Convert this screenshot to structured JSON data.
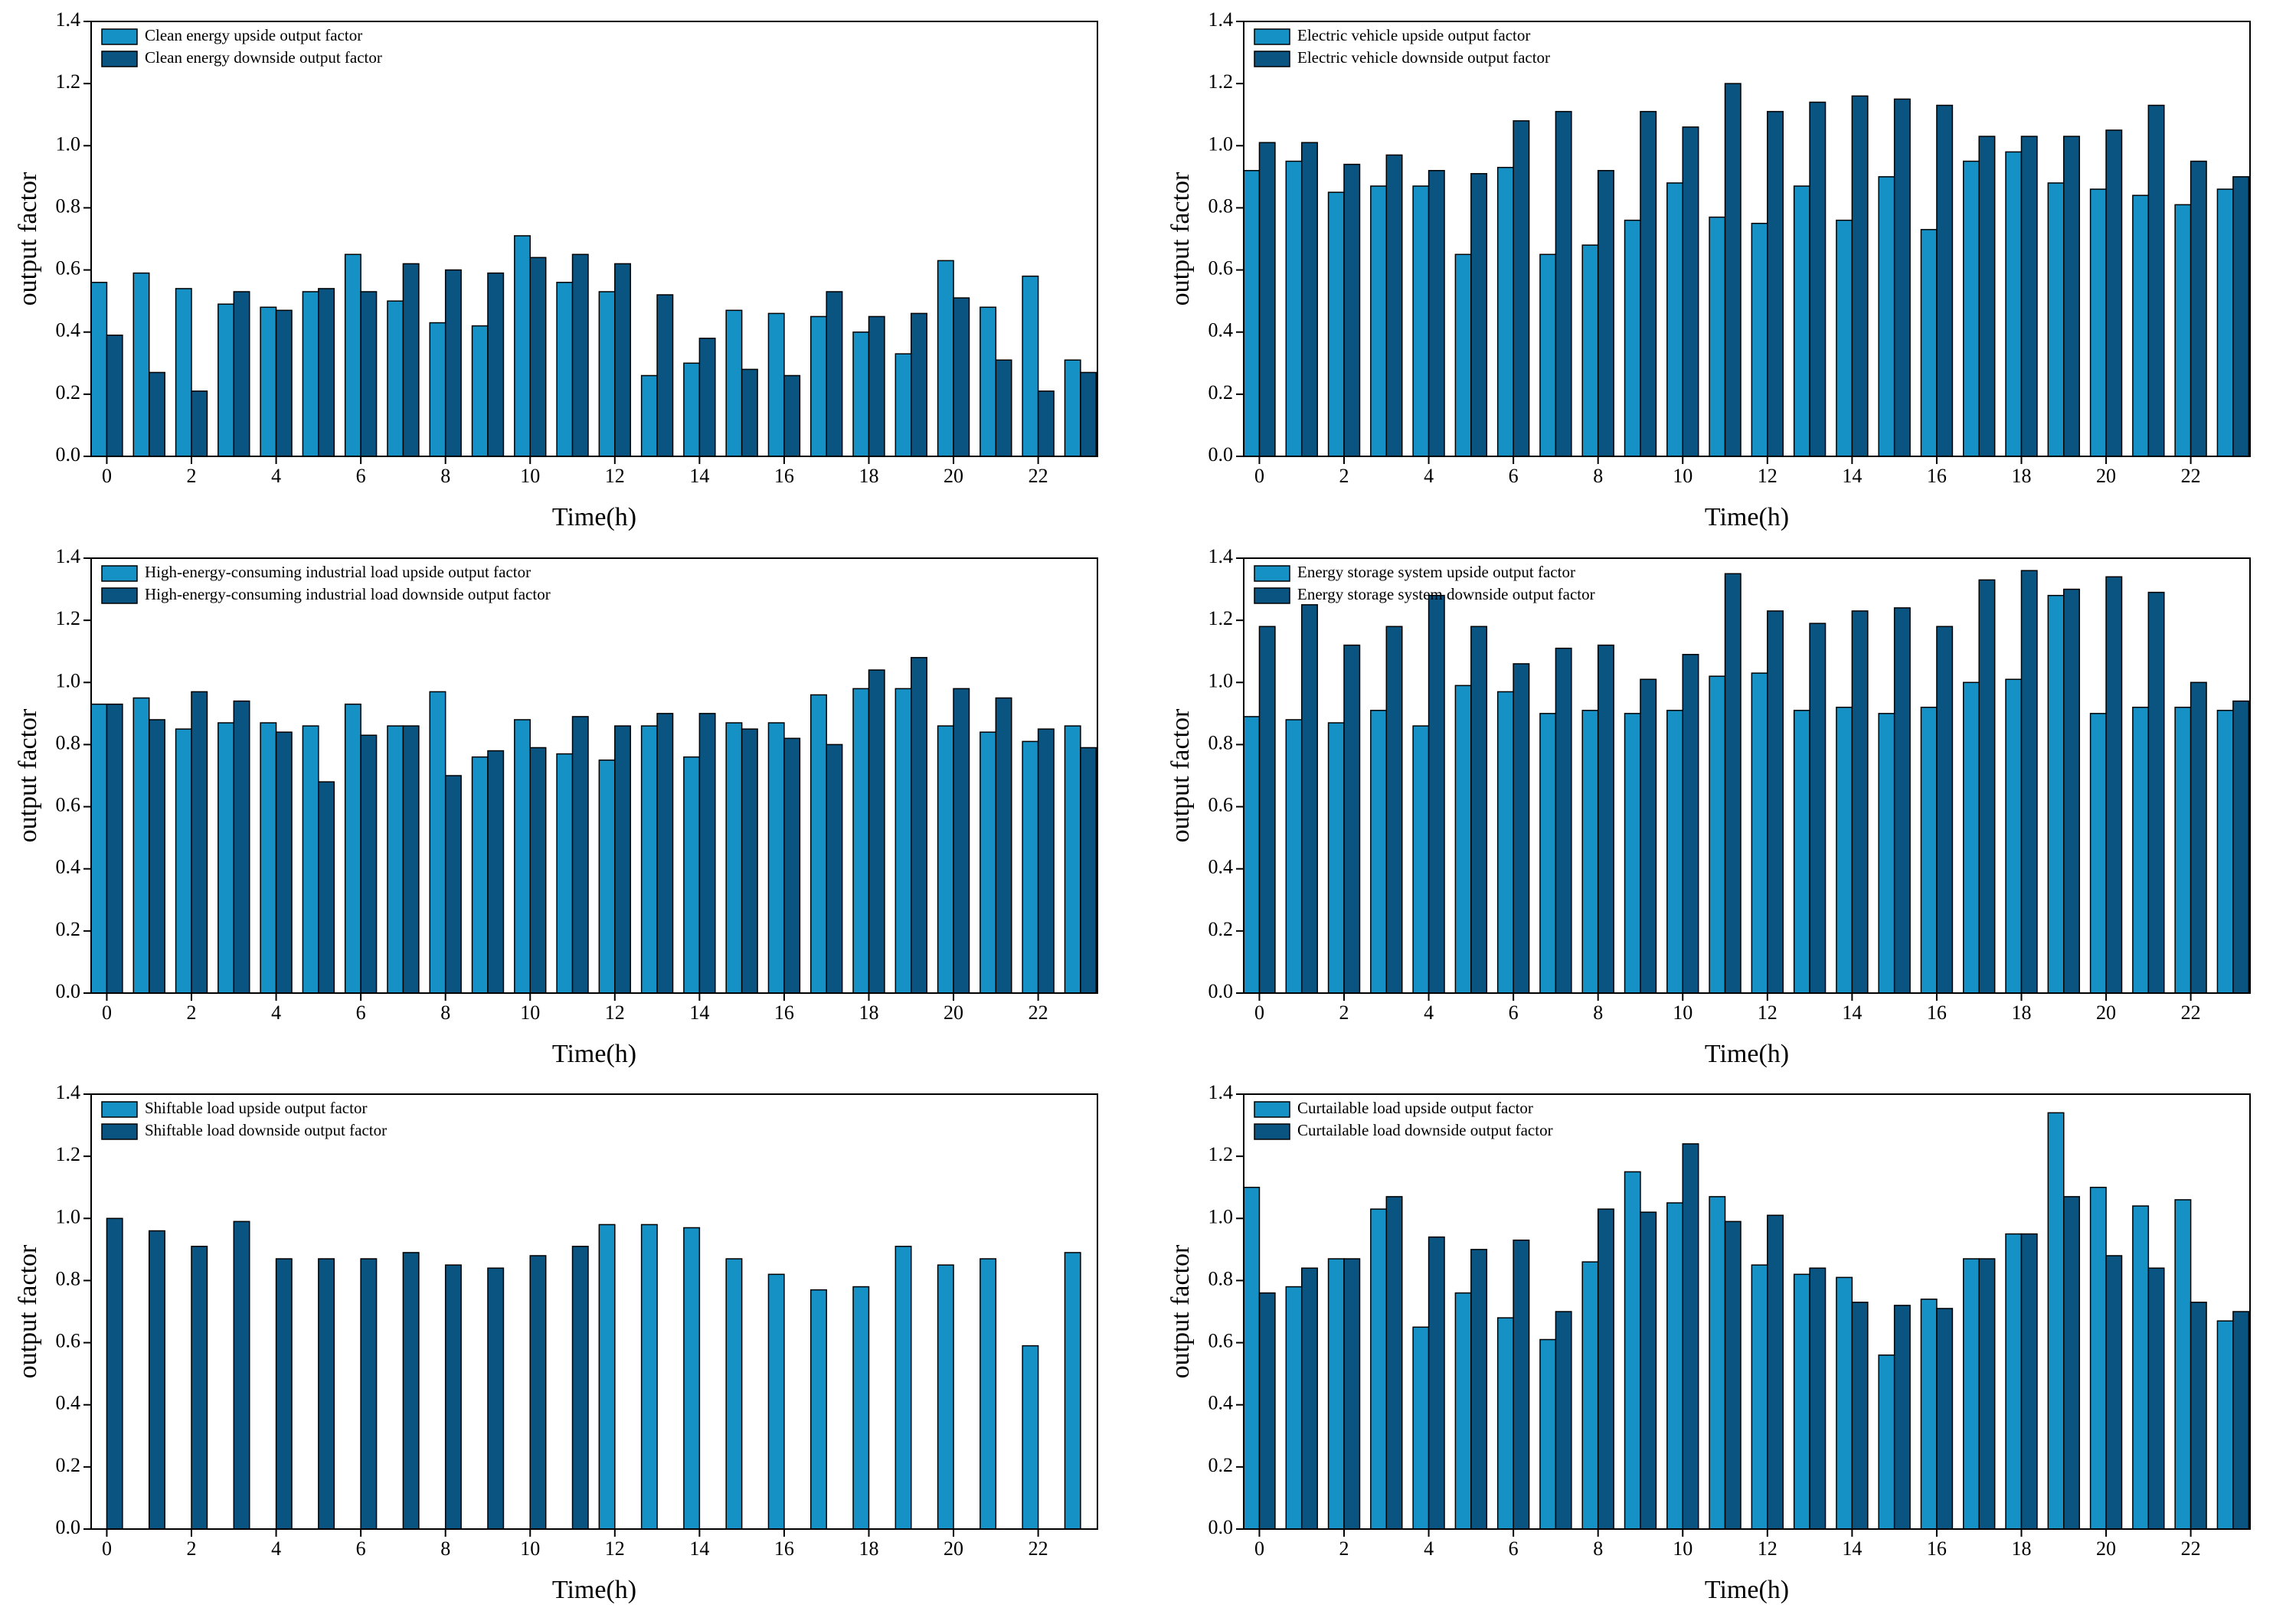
{
  "chart_data": [
    {
      "type": "bar",
      "xlabel": "Time(h)",
      "ylabel": "output factor",
      "x": [
        0,
        1,
        2,
        3,
        4,
        5,
        6,
        7,
        8,
        9,
        10,
        11,
        12,
        13,
        14,
        15,
        16,
        17,
        18,
        19,
        20,
        21,
        22,
        23
      ],
      "xlim": [
        -0.37,
        23.4
      ],
      "xticks": [
        0,
        2,
        4,
        6,
        8,
        10,
        12,
        14,
        16,
        18,
        20,
        22
      ],
      "ylim": [
        0,
        1.4
      ],
      "yticks": [
        {
          "value": 0,
          "label": "0.0"
        },
        0.2,
        0.4,
        0.6,
        0.8,
        {
          "value": 1,
          "label": "1.0"
        },
        1.2,
        1.4
      ],
      "legend": "upper left",
      "series": [
        {
          "name": "Clean energy upside output factor",
          "color": "#1591c6",
          "values": [
            0.56,
            0.59,
            0.54,
            0.49,
            0.48,
            0.53,
            0.65,
            0.5,
            0.43,
            0.42,
            0.71,
            0.56,
            0.53,
            0.26,
            0.3,
            0.47,
            0.46,
            0.45,
            0.4,
            0.33,
            0.63,
            0.48,
            0.58,
            0.31
          ]
        },
        {
          "name": "Clean energy downside output factor",
          "color": "#0a5481",
          "values": [
            0.39,
            0.27,
            0.21,
            0.53,
            0.47,
            0.54,
            0.53,
            0.62,
            0.6,
            0.59,
            0.64,
            0.65,
            0.62,
            0.52,
            0.38,
            0.28,
            0.26,
            0.53,
            0.45,
            0.46,
            0.51,
            0.31,
            0.21,
            0.27
          ]
        }
      ]
    },
    {
      "type": "bar",
      "xlabel": "Time(h)",
      "ylabel": "output factor",
      "x": [
        0,
        1,
        2,
        3,
        4,
        5,
        6,
        7,
        8,
        9,
        10,
        11,
        12,
        13,
        14,
        15,
        16,
        17,
        18,
        19,
        20,
        21,
        22,
        23
      ],
      "xlim": [
        -0.37,
        23.4
      ],
      "xticks": [
        0,
        2,
        4,
        6,
        8,
        10,
        12,
        14,
        16,
        18,
        20,
        22
      ],
      "ylim": [
        0,
        1.4
      ],
      "yticks": [
        {
          "value": 0,
          "label": "0.0"
        },
        0.2,
        0.4,
        0.6,
        0.8,
        {
          "value": 1,
          "label": "1.0"
        },
        1.2,
        1.4
      ],
      "legend": "upper left",
      "series": [
        {
          "name": "Electric vehicle upside output factor",
          "color": "#1591c6",
          "values": [
            0.92,
            0.95,
            0.85,
            0.87,
            0.87,
            0.65,
            0.93,
            0.65,
            0.68,
            0.76,
            0.88,
            0.77,
            0.75,
            0.87,
            0.76,
            0.9,
            0.73,
            0.95,
            0.98,
            0.88,
            0.86,
            0.84,
            0.81,
            0.86
          ]
        },
        {
          "name": "Electric vehicle downside output factor",
          "color": "#0a5481",
          "values": [
            1.01,
            1.01,
            0.94,
            0.97,
            0.92,
            0.91,
            1.08,
            1.11,
            0.92,
            1.11,
            1.06,
            1.2,
            1.11,
            1.14,
            1.16,
            1.15,
            1.13,
            1.03,
            1.03,
            1.03,
            1.05,
            1.13,
            0.95,
            0.9
          ]
        }
      ]
    },
    {
      "type": "bar",
      "xlabel": "Time(h)",
      "ylabel": "output factor",
      "x": [
        0,
        1,
        2,
        3,
        4,
        5,
        6,
        7,
        8,
        9,
        10,
        11,
        12,
        13,
        14,
        15,
        16,
        17,
        18,
        19,
        20,
        21,
        22,
        23
      ],
      "xlim": [
        -0.37,
        23.4
      ],
      "xticks": [
        0,
        2,
        4,
        6,
        8,
        10,
        12,
        14,
        16,
        18,
        20,
        22
      ],
      "ylim": [
        0,
        1.4
      ],
      "yticks": [
        {
          "value": 0,
          "label": "0.0"
        },
        0.2,
        0.4,
        0.6,
        0.8,
        {
          "value": 1,
          "label": "1.0"
        },
        1.2,
        1.4
      ],
      "legend": "upper left",
      "series": [
        {
          "name": "High-energy-consuming industrial load upside output factor",
          "color": "#1591c6",
          "values": [
            0.93,
            0.95,
            0.85,
            0.87,
            0.87,
            0.86,
            0.93,
            0.86,
            0.97,
            0.76,
            0.88,
            0.77,
            0.75,
            0.86,
            0.76,
            0.87,
            0.87,
            0.96,
            0.98,
            0.98,
            0.86,
            0.84,
            0.81,
            0.86
          ]
        },
        {
          "name": "High-energy-consuming industrial load downside output factor",
          "color": "#0a5481",
          "values": [
            0.93,
            0.88,
            0.97,
            0.94,
            0.84,
            0.68,
            0.83,
            0.86,
            0.7,
            0.78,
            0.79,
            0.89,
            0.86,
            0.9,
            0.9,
            0.85,
            0.82,
            0.8,
            1.04,
            1.08,
            0.98,
            0.95,
            0.85,
            0.79
          ]
        }
      ]
    },
    {
      "type": "bar",
      "xlabel": "Time(h)",
      "ylabel": "output factor",
      "x": [
        0,
        1,
        2,
        3,
        4,
        5,
        6,
        7,
        8,
        9,
        10,
        11,
        12,
        13,
        14,
        15,
        16,
        17,
        18,
        19,
        20,
        21,
        22,
        23
      ],
      "xlim": [
        -0.37,
        23.4
      ],
      "xticks": [
        0,
        2,
        4,
        6,
        8,
        10,
        12,
        14,
        16,
        18,
        20,
        22
      ],
      "ylim": [
        0,
        1.4
      ],
      "yticks": [
        {
          "value": 0,
          "label": "0.0"
        },
        0.2,
        0.4,
        0.6,
        0.8,
        {
          "value": 1,
          "label": "1.0"
        },
        1.2,
        1.4
      ],
      "legend": "upper left",
      "series": [
        {
          "name": "Energy storage system upside output factor",
          "color": "#1591c6",
          "values": [
            0.89,
            0.88,
            0.87,
            0.91,
            0.86,
            0.99,
            0.97,
            0.9,
            0.91,
            0.9,
            0.91,
            1.02,
            1.03,
            0.91,
            0.92,
            0.9,
            0.92,
            1.0,
            1.01,
            1.28,
            0.9,
            0.92,
            0.92,
            0.91
          ]
        },
        {
          "name": "Energy storage system downside output factor",
          "color": "#0a5481",
          "values": [
            1.18,
            1.25,
            1.12,
            1.18,
            1.28,
            1.18,
            1.06,
            1.11,
            1.12,
            1.01,
            1.09,
            1.35,
            1.23,
            1.19,
            1.23,
            1.24,
            1.18,
            1.33,
            1.36,
            1.3,
            1.34,
            1.29,
            1.0,
            0.94
          ]
        }
      ]
    },
    {
      "type": "bar",
      "xlabel": "Time(h)",
      "ylabel": "output factor",
      "x": [
        0,
        1,
        2,
        3,
        4,
        5,
        6,
        7,
        8,
        9,
        10,
        11,
        12,
        13,
        14,
        15,
        16,
        17,
        18,
        19,
        20,
        21,
        22,
        23
      ],
      "xlim": [
        -0.37,
        23.4
      ],
      "xticks": [
        0,
        2,
        4,
        6,
        8,
        10,
        12,
        14,
        16,
        18,
        20,
        22
      ],
      "ylim": [
        0,
        1.4
      ],
      "yticks": [
        {
          "value": 0,
          "label": "0.0"
        },
        0.2,
        0.4,
        0.6,
        0.8,
        {
          "value": 1,
          "label": "1.0"
        },
        1.2,
        1.4
      ],
      "legend": "upper left",
      "series": [
        {
          "name": "Shiftable load upside output factor",
          "color": "#1591c6",
          "values": [
            0,
            0,
            0,
            0,
            0,
            0,
            0,
            0,
            0,
            0,
            0,
            0,
            0.98,
            0.98,
            0.97,
            0.87,
            0.82,
            0.77,
            0.78,
            0.91,
            0.85,
            0.87,
            0.59,
            0.89
          ]
        },
        {
          "name": "Shiftable load downside output factor",
          "color": "#0a5481",
          "values": [
            1.0,
            0.96,
            0.91,
            0.99,
            0.87,
            0.87,
            0.87,
            0.89,
            0.85,
            0.84,
            0.88,
            0.91,
            0,
            0,
            0,
            0,
            0,
            0,
            0,
            0,
            0,
            0,
            0,
            0
          ]
        }
      ]
    },
    {
      "type": "bar",
      "xlabel": "Time(h)",
      "ylabel": "output factor",
      "x": [
        0,
        1,
        2,
        3,
        4,
        5,
        6,
        7,
        8,
        9,
        10,
        11,
        12,
        13,
        14,
        15,
        16,
        17,
        18,
        19,
        20,
        21,
        22,
        23
      ],
      "xlim": [
        -0.37,
        23.4
      ],
      "xticks": [
        0,
        2,
        4,
        6,
        8,
        10,
        12,
        14,
        16,
        18,
        20,
        22
      ],
      "ylim": [
        0,
        1.4
      ],
      "yticks": [
        {
          "value": 0,
          "label": "0.0"
        },
        0.2,
        0.4,
        0.6,
        0.8,
        {
          "value": 1,
          "label": "1.0"
        },
        1.2,
        1.4
      ],
      "legend": "upper left",
      "series": [
        {
          "name": "Curtailable load upside output factor",
          "color": "#1591c6",
          "values": [
            1.1,
            0.78,
            0.87,
            1.03,
            0.65,
            0.76,
            0.68,
            0.61,
            0.86,
            1.15,
            1.05,
            1.07,
            0.85,
            0.82,
            0.81,
            0.56,
            0.74,
            0.87,
            0.95,
            1.34,
            1.1,
            1.04,
            1.06,
            0.67
          ]
        },
        {
          "name": "Curtailable load downside output factor",
          "color": "#0a5481",
          "values": [
            0.76,
            0.84,
            0.87,
            1.07,
            0.94,
            0.9,
            0.93,
            0.7,
            1.03,
            1.02,
            1.24,
            0.99,
            1.01,
            0.84,
            0.73,
            0.72,
            0.71,
            0.87,
            0.95,
            1.07,
            0.88,
            0.84,
            0.73,
            0.7
          ]
        }
      ]
    }
  ]
}
